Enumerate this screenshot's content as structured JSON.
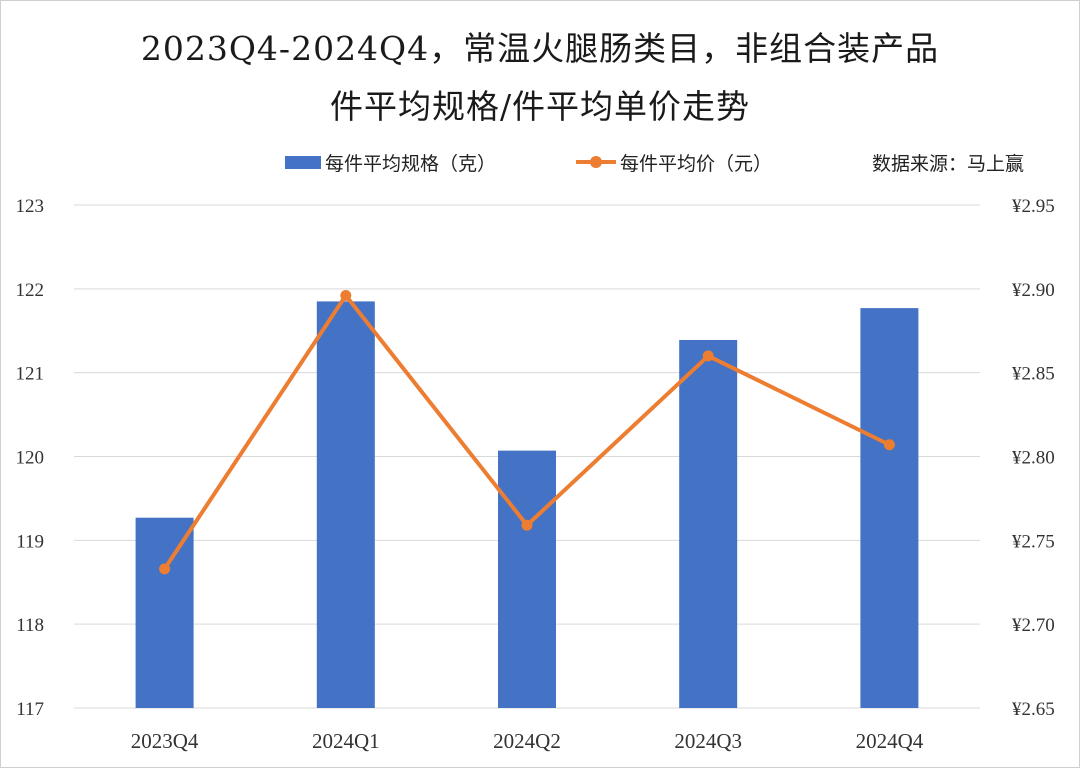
{
  "title": {
    "line1": "2023Q4-2024Q4，常温火腿肠类目，非组合装产品",
    "line2": "件平均规格/件平均单价走势"
  },
  "source": "数据来源：马上赢",
  "colors": {
    "bar": "#4472c4",
    "line": "#ed7d31",
    "grid": "#d9d9d9"
  },
  "chart_data": {
    "type": "bar",
    "categories": [
      "2023Q4",
      "2024Q1",
      "2024Q2",
      "2024Q3",
      "2024Q4"
    ],
    "series": [
      {
        "name": "每件平均规格（克）",
        "type": "bar",
        "axis": "left",
        "values": [
          119.27,
          121.85,
          120.07,
          121.39,
          121.77
        ]
      },
      {
        "name": "每件平均价（元）",
        "type": "line",
        "axis": "right",
        "values": [
          2.733,
          2.896,
          2.759,
          2.86,
          2.807
        ]
      }
    ],
    "y_left": {
      "min": 117,
      "max": 123,
      "ticks": [
        "117",
        "118",
        "119",
        "120",
        "121",
        "122",
        "123"
      ]
    },
    "y_right": {
      "min": 2.65,
      "max": 2.95,
      "ticks": [
        "¥2.65",
        "¥2.70",
        "¥2.75",
        "¥2.80",
        "¥2.85",
        "¥2.90",
        "¥2.95"
      ]
    },
    "grid": true,
    "legend_position": "top"
  }
}
